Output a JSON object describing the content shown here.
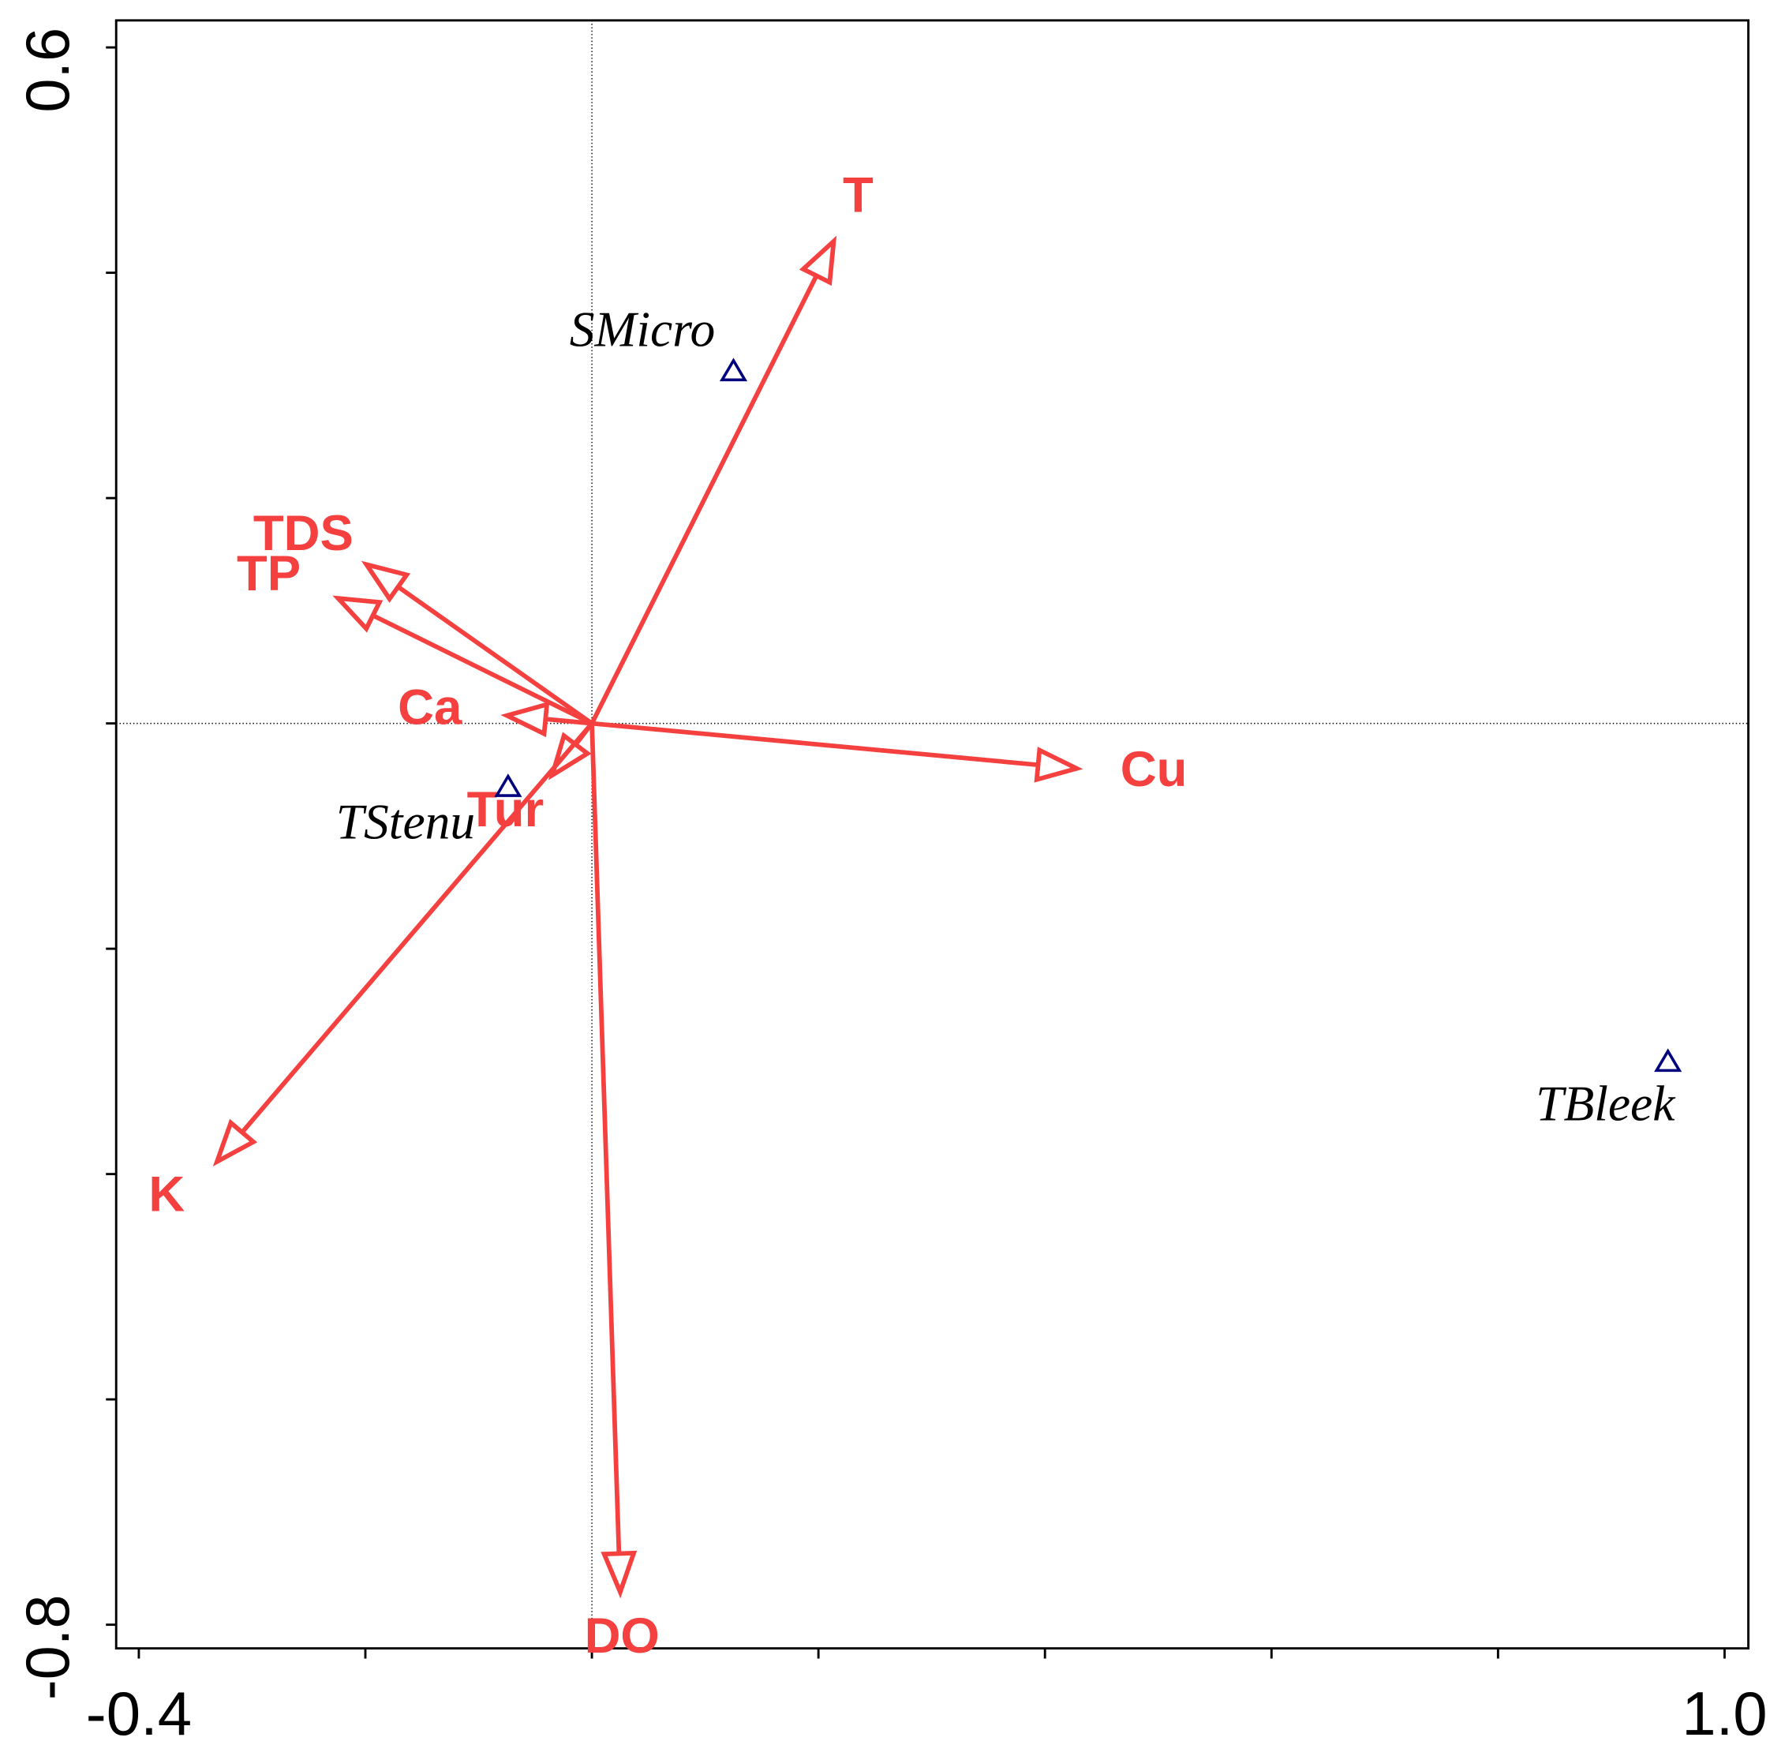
{
  "chart_data": {
    "type": "biplot",
    "xlim": [
      -0.42,
      1.021
    ],
    "ylim": [
      -0.821,
      0.624
    ],
    "xticks": [
      -0.4,
      {
        "value": 1,
        "label": "1.0"
      }
    ],
    "x_minor_ticks": [
      -0.2,
      0,
      0.2,
      0.4,
      0.6,
      0.8
    ],
    "yticks": [
      -0.8,
      0.6
    ],
    "y_minor_ticks": [
      -0.6,
      -0.4,
      -0.2,
      0,
      0.2,
      0.4
    ],
    "zero_lines": true,
    "arrows": {
      "color": "#f54040",
      "names": [
        "T",
        "TDS",
        "TP",
        "Ca",
        "Tur",
        "Cu",
        "K",
        "DO"
      ],
      "x": [
        0.2135,
        -0.199,
        -0.224,
        -0.075,
        -0.035,
        0.428,
        -0.331,
        0.025
      ],
      "y": [
        0.428,
        0.141,
        0.111,
        0.007,
        -0.046,
        -0.04,
        -0.389,
        -0.771
      ]
    },
    "points": {
      "color": "#00007f",
      "names": [
        "SMicro",
        "TStenu",
        "TBleek"
      ],
      "x": [
        0.125,
        -0.074,
        0.95
      ],
      "y": [
        0.313,
        -0.056,
        -0.3
      ]
    }
  }
}
